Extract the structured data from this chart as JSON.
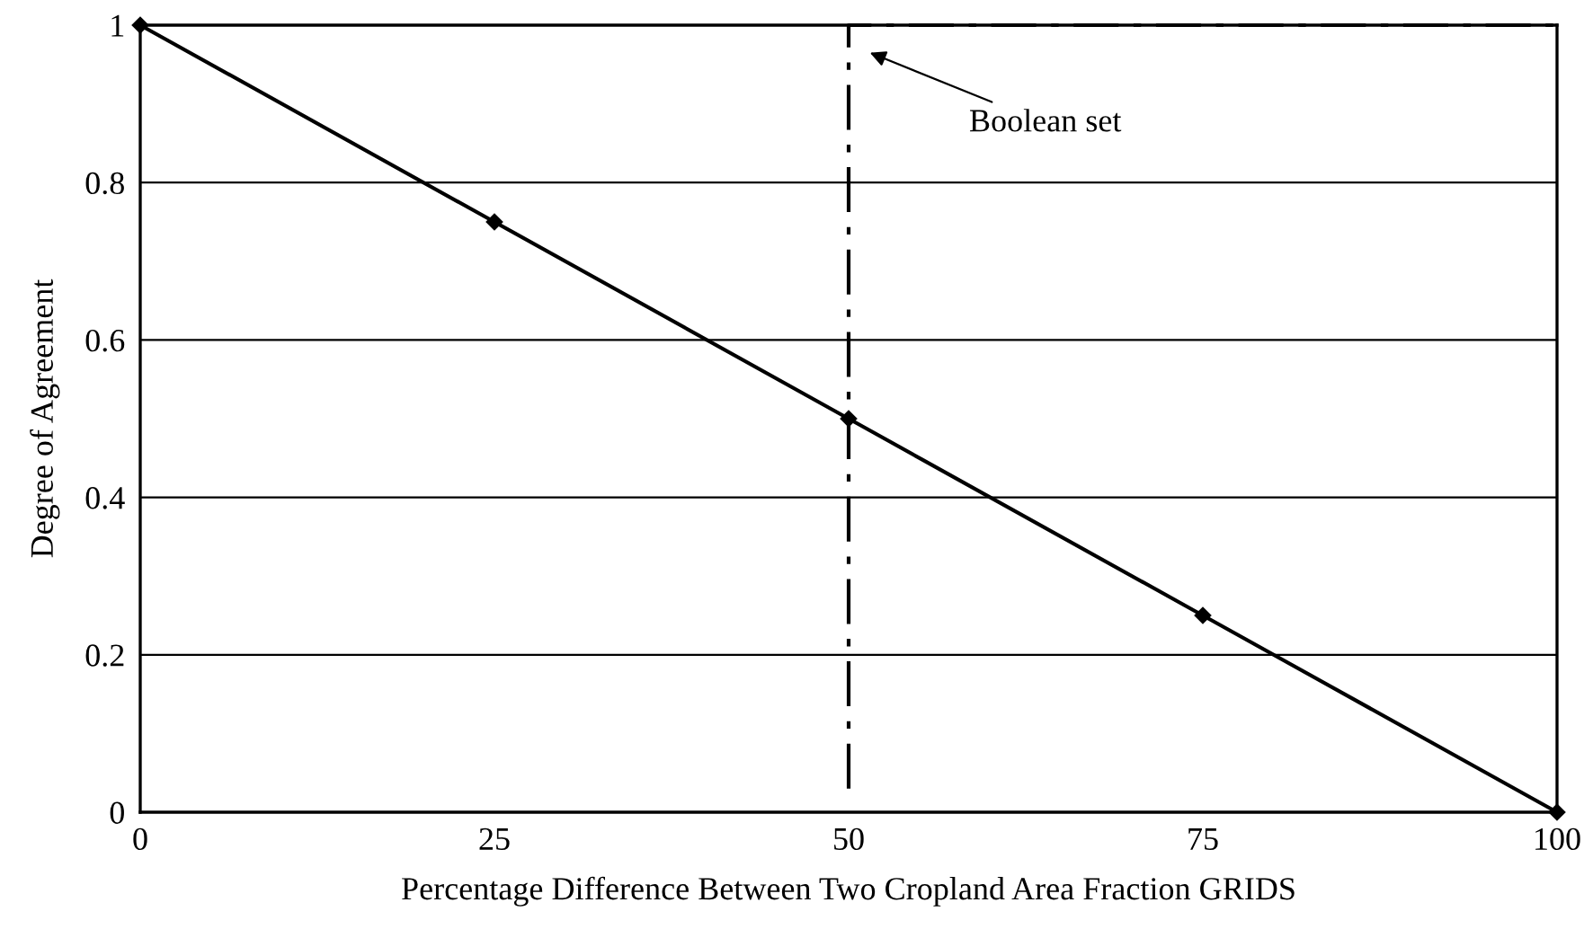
{
  "chart_data": {
    "type": "line",
    "xlabel": "Percentage Difference Between Two Cropland Area Fraction GRIDS",
    "ylabel": "Degree of Agreement",
    "series": [
      {
        "color": "#000000",
        "x": [
          0,
          25,
          50,
          75,
          100
        ],
        "values": [
          1,
          0.75,
          0.5,
          0.25,
          0
        ],
        "marker": "diamond",
        "line_style": "solid"
      },
      {
        "color": "#000000",
        "x": [
          50,
          50,
          100
        ],
        "values": [
          0.03,
          1,
          1
        ],
        "marker": "none",
        "line_style": "dashdot"
      }
    ],
    "annotations": [
      "Boolean set"
    ],
    "xlim": [
      0,
      100
    ],
    "xticks": [
      0,
      25,
      50,
      75,
      100
    ],
    "ylim": [
      0,
      1
    ],
    "yticks": [
      0,
      0.2,
      0.4,
      0.6,
      0.8,
      1
    ],
    "grid": "y"
  }
}
